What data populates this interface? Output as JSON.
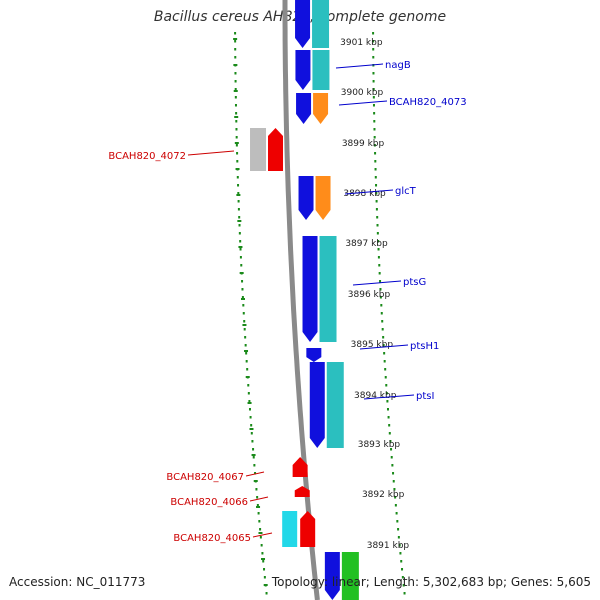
{
  "title": "Bacillus cereus AH820, complete genome",
  "footer": {
    "accession": "Accession: NC_011773",
    "summary": "Topology: linear; Length: 5,302,683 bp; Genes: 5,605"
  },
  "colors": {
    "backbone": "#8a8a8a",
    "forward_gene": "#1010dd",
    "forward_cds": "#2bbfbf",
    "reverse_gene": "#ee0000",
    "other_gene": "#ff8c1a",
    "pseudo": "#bdbdbd",
    "tick": "#1a8a1a",
    "label_forward": "#0000cc",
    "label_reverse": "#cc0000",
    "scale_label": "#222222"
  },
  "scale_labels": [
    "3901 kbp",
    "3900 kbp",
    "3899 kbp",
    "3898 kbp",
    "3897 kbp",
    "3896 kbp",
    "3895 kbp",
    "3894 kbp",
    "3893 kbp",
    "3892 kbp",
    "3891 kbp"
  ],
  "gene_labels_forward": [
    "nagB",
    "BCAH820_4073",
    "glcT",
    "ptsG",
    "ptsH1",
    "ptsI"
  ],
  "gene_labels_reverse": [
    "BCAH820_4072",
    "BCAH820_4067",
    "BCAH820_4066",
    "BCAH820_4065"
  ]
}
